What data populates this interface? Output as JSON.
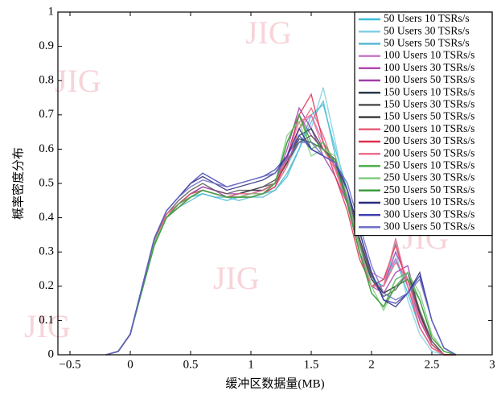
{
  "chart_data": {
    "type": "line",
    "x_label": "缓冲区数据量(MB)",
    "y_label": "概率密度分布",
    "watermark": "JIG",
    "x": [
      -0.2,
      -0.1,
      0,
      0.1,
      0.2,
      0.3,
      0.4,
      0.5,
      0.6,
      0.7,
      0.8,
      0.9,
      1.0,
      1.1,
      1.2,
      1.3,
      1.4,
      1.5,
      1.6,
      1.7,
      1.8,
      1.9,
      2.0,
      2.1,
      2.2,
      2.3,
      2.4,
      2.5,
      2.6,
      2.7
    ],
    "xlim": [
      -0.6,
      3
    ],
    "xticks": [
      {
        "value": -0.5,
        "label": "−0.5"
      },
      0,
      0.5,
      1,
      1.5,
      2,
      2.5,
      3
    ],
    "ylim": [
      0,
      1
    ],
    "yticks": [
      0,
      0.1,
      0.2,
      0.3,
      0.4,
      0.5,
      0.6,
      0.7,
      0.8,
      0.9,
      1
    ],
    "legend": "upper right",
    "series": [
      {
        "name": "50 Users 10 TSRs/s",
        "color": "#3cbfd8",
        "values": [
          0,
          0.01,
          0.06,
          0.2,
          0.33,
          0.4,
          0.43,
          0.46,
          0.47,
          0.46,
          0.45,
          0.46,
          0.46,
          0.47,
          0.48,
          0.52,
          0.6,
          0.7,
          0.73,
          0.6,
          0.48,
          0.32,
          0.22,
          0.2,
          0.28,
          0.18,
          0.08,
          0.02,
          0,
          0
        ]
      },
      {
        "name": "50 Users 30 TSRs/s",
        "color": "#7fd0e6",
        "values": [
          0,
          0.01,
          0.06,
          0.2,
          0.33,
          0.41,
          0.44,
          0.47,
          0.48,
          0.47,
          0.46,
          0.46,
          0.47,
          0.47,
          0.49,
          0.55,
          0.62,
          0.66,
          0.78,
          0.62,
          0.45,
          0.3,
          0.2,
          0.22,
          0.3,
          0.16,
          0.06,
          0.01,
          0,
          0
        ]
      },
      {
        "name": "50 Users 50 TSRs/s",
        "color": "#56b8d0",
        "values": [
          0,
          0.01,
          0.06,
          0.19,
          0.32,
          0.4,
          0.43,
          0.45,
          0.47,
          0.46,
          0.46,
          0.45,
          0.46,
          0.46,
          0.48,
          0.53,
          0.6,
          0.68,
          0.74,
          0.58,
          0.44,
          0.3,
          0.22,
          0.2,
          0.33,
          0.2,
          0.08,
          0.02,
          0,
          0
        ]
      },
      {
        "name": "100 Users 10 TSRs/s",
        "color": "#c878c8",
        "values": [
          0,
          0.01,
          0.06,
          0.2,
          0.33,
          0.4,
          0.43,
          0.46,
          0.48,
          0.47,
          0.46,
          0.47,
          0.47,
          0.48,
          0.5,
          0.58,
          0.66,
          0.7,
          0.62,
          0.56,
          0.46,
          0.34,
          0.24,
          0.22,
          0.28,
          0.2,
          0.1,
          0.03,
          0,
          0
        ]
      },
      {
        "name": "100 Users 30 TSRs/s",
        "color": "#b04ab0",
        "values": [
          0,
          0.01,
          0.06,
          0.2,
          0.34,
          0.41,
          0.44,
          0.47,
          0.49,
          0.48,
          0.47,
          0.47,
          0.48,
          0.48,
          0.5,
          0.58,
          0.7,
          0.64,
          0.6,
          0.55,
          0.45,
          0.32,
          0.2,
          0.2,
          0.3,
          0.22,
          0.1,
          0.03,
          0,
          0
        ]
      },
      {
        "name": "100 Users 50 TSRs/s",
        "color": "#a040a8",
        "values": [
          0,
          0.01,
          0.06,
          0.2,
          0.33,
          0.4,
          0.44,
          0.47,
          0.49,
          0.48,
          0.46,
          0.46,
          0.47,
          0.48,
          0.5,
          0.6,
          0.72,
          0.66,
          0.58,
          0.52,
          0.44,
          0.3,
          0.2,
          0.18,
          0.24,
          0.26,
          0.12,
          0.04,
          0,
          0
        ]
      },
      {
        "name": "150 Users 10 TSRs/s",
        "color": "#2a3a4a",
        "values": [
          0,
          0.01,
          0.06,
          0.2,
          0.33,
          0.41,
          0.44,
          0.47,
          0.48,
          0.47,
          0.46,
          0.47,
          0.48,
          0.48,
          0.5,
          0.56,
          0.64,
          0.66,
          0.6,
          0.56,
          0.46,
          0.32,
          0.22,
          0.18,
          0.2,
          0.24,
          0.12,
          0.03,
          0,
          0
        ]
      },
      {
        "name": "150 Users 30 TSRs/s",
        "color": "#555555",
        "values": [
          0,
          0.01,
          0.06,
          0.2,
          0.34,
          0.41,
          0.45,
          0.48,
          0.5,
          0.48,
          0.47,
          0.48,
          0.48,
          0.49,
          0.5,
          0.56,
          0.62,
          0.64,
          0.6,
          0.56,
          0.46,
          0.33,
          0.22,
          0.17,
          0.19,
          0.24,
          0.13,
          0.04,
          0,
          0
        ]
      },
      {
        "name": "150 Users 50 TSRs/s",
        "color": "#404040",
        "values": [
          0,
          0.01,
          0.06,
          0.2,
          0.33,
          0.4,
          0.44,
          0.46,
          0.48,
          0.47,
          0.46,
          0.47,
          0.48,
          0.49,
          0.51,
          0.56,
          0.63,
          0.62,
          0.6,
          0.57,
          0.48,
          0.34,
          0.23,
          0.18,
          0.2,
          0.22,
          0.12,
          0.03,
          0,
          0
        ]
      },
      {
        "name": "200 Users 10 TSRs/s",
        "color": "#e8607a",
        "values": [
          0,
          0.01,
          0.06,
          0.2,
          0.33,
          0.41,
          0.44,
          0.47,
          0.48,
          0.47,
          0.46,
          0.46,
          0.46,
          0.47,
          0.49,
          0.55,
          0.66,
          0.72,
          0.64,
          0.54,
          0.44,
          0.3,
          0.2,
          0.2,
          0.27,
          0.22,
          0.11,
          0.03,
          0,
          0
        ]
      },
      {
        "name": "200 Users 30 TSRs/s",
        "color": "#e03050",
        "values": [
          0,
          0.01,
          0.06,
          0.2,
          0.33,
          0.4,
          0.43,
          0.46,
          0.48,
          0.47,
          0.46,
          0.46,
          0.47,
          0.47,
          0.49,
          0.57,
          0.7,
          0.76,
          0.62,
          0.52,
          0.42,
          0.28,
          0.2,
          0.22,
          0.32,
          0.2,
          0.08,
          0.02,
          0,
          0
        ]
      },
      {
        "name": "200 Users 50 TSRs/s",
        "color": "#f0708c",
        "values": [
          0,
          0.01,
          0.06,
          0.2,
          0.33,
          0.41,
          0.44,
          0.46,
          0.48,
          0.47,
          0.46,
          0.47,
          0.47,
          0.48,
          0.5,
          0.58,
          0.68,
          0.7,
          0.6,
          0.54,
          0.44,
          0.3,
          0.2,
          0.2,
          0.34,
          0.2,
          0.08,
          0.02,
          0,
          0
        ]
      },
      {
        "name": "250 Users 10 TSRs/s",
        "color": "#4aae4a",
        "values": [
          0,
          0.01,
          0.06,
          0.2,
          0.32,
          0.4,
          0.44,
          0.46,
          0.48,
          0.47,
          0.46,
          0.46,
          0.46,
          0.47,
          0.5,
          0.62,
          0.7,
          0.6,
          0.62,
          0.56,
          0.44,
          0.3,
          0.18,
          0.14,
          0.22,
          0.24,
          0.16,
          0.05,
          0.01,
          0
        ]
      },
      {
        "name": "250 Users 30 TSRs/s",
        "color": "#80cc80",
        "values": [
          0,
          0.01,
          0.06,
          0.2,
          0.33,
          0.4,
          0.43,
          0.46,
          0.48,
          0.47,
          0.46,
          0.46,
          0.47,
          0.47,
          0.5,
          0.64,
          0.68,
          0.58,
          0.6,
          0.58,
          0.46,
          0.32,
          0.2,
          0.13,
          0.2,
          0.24,
          0.18,
          0.06,
          0.01,
          0
        ]
      },
      {
        "name": "250 Users 50 TSRs/s",
        "color": "#3c9c3c",
        "values": [
          0,
          0.01,
          0.06,
          0.19,
          0.32,
          0.4,
          0.43,
          0.46,
          0.48,
          0.47,
          0.46,
          0.46,
          0.46,
          0.47,
          0.5,
          0.62,
          0.7,
          0.62,
          0.6,
          0.56,
          0.44,
          0.3,
          0.18,
          0.14,
          0.2,
          0.22,
          0.16,
          0.05,
          0.01,
          0
        ]
      },
      {
        "name": "300 Users 10 TSRs/s",
        "color": "#2a2a80",
        "values": [
          0,
          0.01,
          0.06,
          0.2,
          0.34,
          0.42,
          0.46,
          0.5,
          0.52,
          0.5,
          0.48,
          0.49,
          0.5,
          0.51,
          0.53,
          0.58,
          0.66,
          0.6,
          0.58,
          0.56,
          0.48,
          0.36,
          0.24,
          0.16,
          0.14,
          0.18,
          0.24,
          0.1,
          0.02,
          0
        ]
      },
      {
        "name": "300 Users 30 TSRs/s",
        "color": "#4040b0",
        "values": [
          0,
          0.01,
          0.06,
          0.2,
          0.34,
          0.42,
          0.46,
          0.5,
          0.53,
          0.51,
          0.49,
          0.5,
          0.51,
          0.52,
          0.54,
          0.58,
          0.64,
          0.6,
          0.58,
          0.56,
          0.48,
          0.36,
          0.24,
          0.16,
          0.15,
          0.18,
          0.23,
          0.1,
          0.02,
          0
        ]
      },
      {
        "name": "300 Users 50 TSRs/s",
        "color": "#6a6ac4",
        "values": [
          0,
          0.01,
          0.06,
          0.2,
          0.34,
          0.42,
          0.46,
          0.49,
          0.51,
          0.5,
          0.49,
          0.5,
          0.51,
          0.52,
          0.53,
          0.57,
          0.62,
          0.62,
          0.58,
          0.56,
          0.5,
          0.38,
          0.26,
          0.18,
          0.16,
          0.18,
          0.22,
          0.1,
          0.02,
          0
        ]
      }
    ]
  }
}
